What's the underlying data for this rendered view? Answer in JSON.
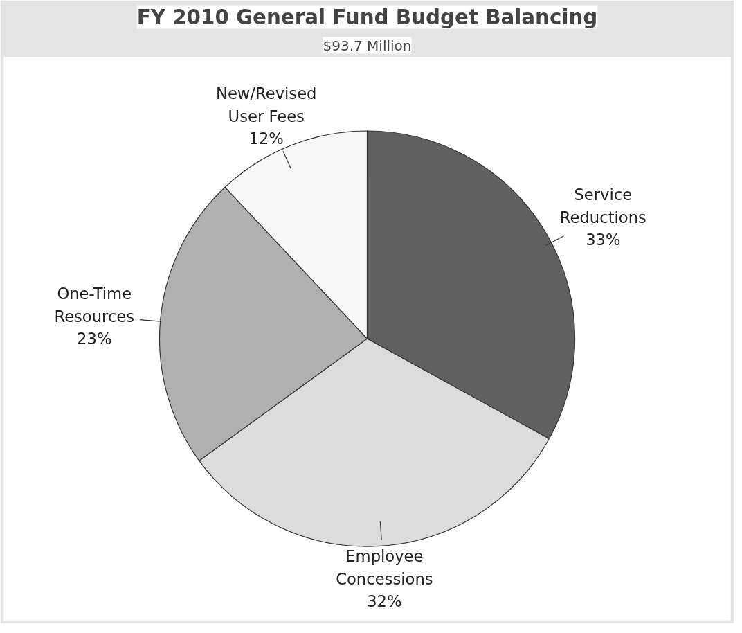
{
  "chart_data": {
    "type": "pie",
    "title": "FY 2010 General Fund Budget Balancing",
    "subtitle": "$93.7 Million",
    "categories": [
      "Service Reductions",
      "Employee Concessions",
      "One-Time Resources",
      "New/Revised User Fees"
    ],
    "values": [
      33,
      32,
      23,
      12
    ],
    "value_labels": [
      "33%",
      "32%",
      "23%",
      "12%"
    ],
    "colors": [
      "#606060",
      "#dcdcdc",
      "#b0b0b0",
      "#f8f8f8"
    ]
  }
}
